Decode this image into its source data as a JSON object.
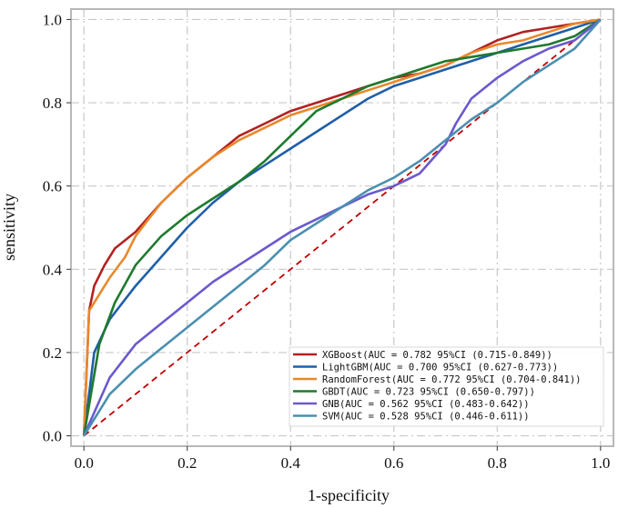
{
  "chart_data": {
    "type": "line",
    "title": "",
    "xlabel": "1-specificity",
    "ylabel": "sensitivity",
    "xlim": [
      -0.025,
      1.025
    ],
    "ylim": [
      -0.025,
      1.025
    ],
    "xticks": [
      0.0,
      0.2,
      0.4,
      0.6,
      0.8,
      1.0
    ],
    "yticks": [
      0.0,
      0.2,
      0.4,
      0.6,
      0.8,
      1.0
    ],
    "xtick_labels": [
      "0.0",
      "0.2",
      "0.4",
      "0.6",
      "0.8",
      "1.0"
    ],
    "ytick_labels": [
      "0.0",
      "0.2",
      "0.4",
      "0.6",
      "0.8",
      "1.0"
    ],
    "grid": true,
    "legend_position": "lower-right",
    "reference_line": {
      "x": [
        0,
        1
      ],
      "y": [
        0,
        1
      ],
      "color": "#c00000",
      "style": "dashed"
    },
    "series": [
      {
        "name": "XGBoost(AUC = 0.782 95%CI (0.715-0.849))",
        "color": "#b22222",
        "x": [
          0,
          0.01,
          0.02,
          0.04,
          0.06,
          0.1,
          0.15,
          0.2,
          0.25,
          0.3,
          0.35,
          0.4,
          0.45,
          0.5,
          0.55,
          0.6,
          0.65,
          0.7,
          0.75,
          0.8,
          0.85,
          0.9,
          0.95,
          1.0
        ],
        "y": [
          0,
          0.3,
          0.36,
          0.41,
          0.45,
          0.49,
          0.56,
          0.62,
          0.67,
          0.72,
          0.75,
          0.78,
          0.8,
          0.82,
          0.84,
          0.86,
          0.87,
          0.89,
          0.92,
          0.95,
          0.97,
          0.98,
          0.99,
          1.0
        ]
      },
      {
        "name": "LightGBM(AUC = 0.700 95%CI (0.627-0.773))",
        "color": "#1f5fa8",
        "x": [
          0,
          0.02,
          0.05,
          0.1,
          0.15,
          0.2,
          0.25,
          0.3,
          0.35,
          0.4,
          0.45,
          0.5,
          0.55,
          0.6,
          0.65,
          0.7,
          0.75,
          0.8,
          0.85,
          0.9,
          0.95,
          1.0
        ],
        "y": [
          0,
          0.2,
          0.28,
          0.36,
          0.43,
          0.5,
          0.56,
          0.61,
          0.65,
          0.69,
          0.73,
          0.77,
          0.81,
          0.84,
          0.86,
          0.88,
          0.9,
          0.92,
          0.94,
          0.96,
          0.98,
          1.0
        ]
      },
      {
        "name": "RandomForest(AUC = 0.772 95%CI (0.704-0.841))",
        "color": "#e8892b",
        "x": [
          0,
          0.01,
          0.03,
          0.05,
          0.08,
          0.1,
          0.15,
          0.2,
          0.25,
          0.3,
          0.35,
          0.4,
          0.45,
          0.5,
          0.55,
          0.6,
          0.65,
          0.7,
          0.75,
          0.8,
          0.85,
          0.9,
          0.95,
          1.0
        ],
        "y": [
          0,
          0.3,
          0.34,
          0.38,
          0.43,
          0.48,
          0.56,
          0.62,
          0.67,
          0.71,
          0.74,
          0.77,
          0.79,
          0.81,
          0.83,
          0.85,
          0.87,
          0.89,
          0.92,
          0.94,
          0.95,
          0.97,
          0.99,
          1.0
        ]
      },
      {
        "name": "GBDT(AUC = 0.723 95%CI (0.650-0.797))",
        "color": "#1e7a2e",
        "x": [
          0,
          0.03,
          0.06,
          0.1,
          0.15,
          0.2,
          0.25,
          0.3,
          0.35,
          0.4,
          0.45,
          0.5,
          0.55,
          0.6,
          0.65,
          0.7,
          0.75,
          0.8,
          0.85,
          0.9,
          0.95,
          1.0
        ],
        "y": [
          0,
          0.22,
          0.32,
          0.41,
          0.48,
          0.53,
          0.57,
          0.61,
          0.66,
          0.72,
          0.78,
          0.81,
          0.84,
          0.86,
          0.88,
          0.9,
          0.91,
          0.92,
          0.93,
          0.94,
          0.96,
          1.0
        ]
      },
      {
        "name": "GNB(AUC = 0.562 95%CI (0.483-0.642))",
        "color": "#6a5acd",
        "x": [
          0,
          0.05,
          0.1,
          0.15,
          0.2,
          0.25,
          0.3,
          0.35,
          0.4,
          0.45,
          0.5,
          0.55,
          0.6,
          0.65,
          0.7,
          0.72,
          0.75,
          0.8,
          0.85,
          0.9,
          0.95,
          1.0
        ],
        "y": [
          0,
          0.14,
          0.22,
          0.27,
          0.32,
          0.37,
          0.41,
          0.45,
          0.49,
          0.52,
          0.55,
          0.58,
          0.6,
          0.63,
          0.7,
          0.75,
          0.81,
          0.86,
          0.9,
          0.93,
          0.95,
          1.0
        ]
      },
      {
        "name": "SVM(AUC = 0.528 95%CI (0.446-0.611))",
        "color": "#4a8fb0",
        "x": [
          0,
          0.05,
          0.1,
          0.15,
          0.2,
          0.25,
          0.3,
          0.35,
          0.4,
          0.45,
          0.5,
          0.55,
          0.6,
          0.65,
          0.7,
          0.75,
          0.8,
          0.85,
          0.9,
          0.95,
          1.0
        ],
        "y": [
          0,
          0.1,
          0.16,
          0.21,
          0.26,
          0.31,
          0.36,
          0.41,
          0.47,
          0.51,
          0.55,
          0.59,
          0.62,
          0.66,
          0.71,
          0.76,
          0.8,
          0.85,
          0.89,
          0.93,
          1.0
        ]
      }
    ]
  }
}
